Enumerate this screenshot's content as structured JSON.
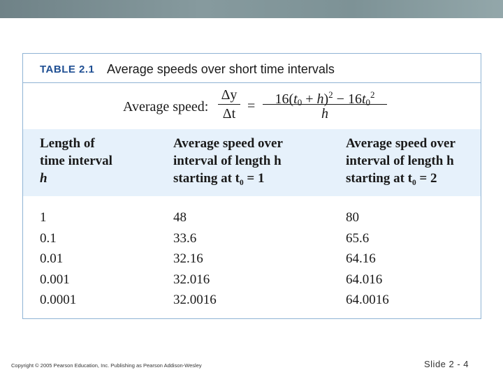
{
  "table": {
    "label": "TABLE 2.1",
    "caption": "Average speeds over short time intervals",
    "formula": {
      "lead": "Average speed:",
      "left_num": "Δy",
      "left_den": "Δt",
      "equals": "=",
      "right_num_a": "16(",
      "right_num_t": "t",
      "right_num_sub0": "0",
      "right_num_b": " + ",
      "right_num_h": "h",
      "right_num_c": ")",
      "right_num_sup2": "2",
      "right_num_d": " − 16",
      "right_num_t2": "t",
      "right_num_sub0b": "0",
      "right_num_sup2b": "2",
      "right_den": "h"
    },
    "headers": [
      [
        "Length of",
        "time interval",
        "h"
      ],
      [
        "Average speed over",
        "interval of length h",
        "starting at t₀ = 1"
      ],
      [
        "Average speed over",
        "interval of length h",
        "starting at t₀ = 2"
      ]
    ],
    "columns": {
      "h": [
        "1",
        "0.1",
        "0.01",
        "0.001",
        "0.0001"
      ],
      "speed_t0_1": [
        "48",
        "33.6",
        "32.16",
        "32.016",
        "32.0016"
      ],
      "speed_t0_2": [
        "80",
        "65.6",
        "64.16",
        "64.016",
        "64.0016"
      ]
    }
  },
  "footer": {
    "copyright": "Copyright © 2005 Pearson Education, Inc. Publishing as Pearson Addison-Wesley",
    "slide": "Slide 2 - 4"
  },
  "colors": {
    "accent": "#1f4f93",
    "border": "#8fb3d4",
    "header_band": "#e6f1fb"
  }
}
